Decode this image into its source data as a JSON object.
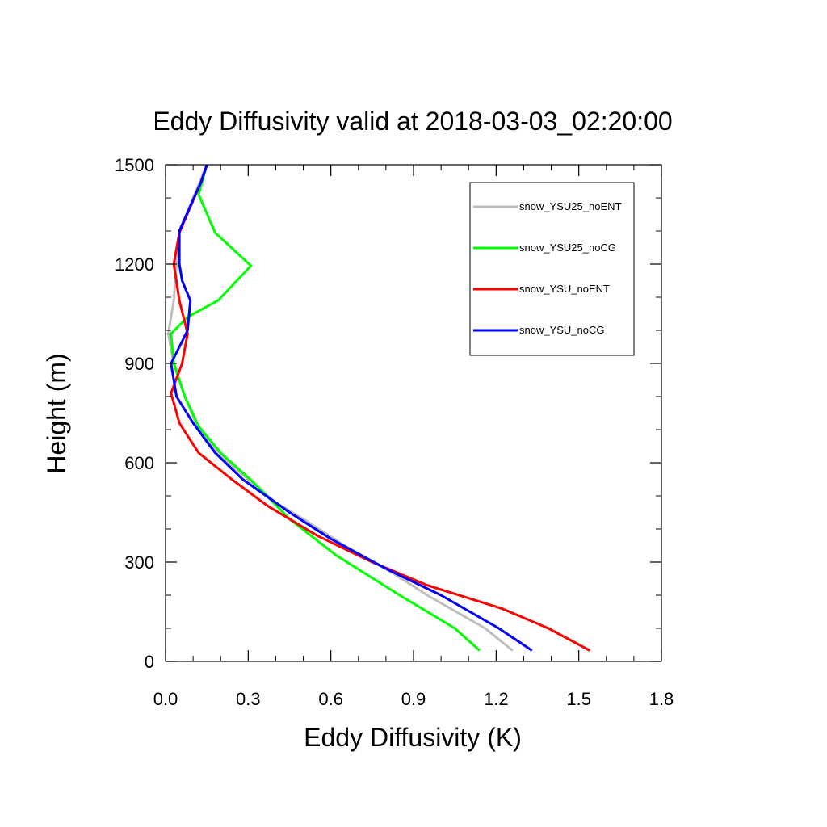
{
  "chart_data": {
    "type": "line",
    "title": "Eddy Diffusivity valid at 2018-03-03_02:20:00",
    "xlabel": "Eddy Diffusivity (K)",
    "ylabel": "Height (m)",
    "xlim": [
      0,
      1.8
    ],
    "ylim": [
      0,
      1500
    ],
    "xticks": [
      "0.0",
      "0.3",
      "0.6",
      "0.9",
      "1.2",
      "1.5",
      "1.8"
    ],
    "yticks": [
      "0",
      "300",
      "600",
      "900",
      "1200",
      "1500"
    ],
    "legend_position": "top-right",
    "grid": false,
    "series": [
      {
        "name": "snow_YSU25_noENT",
        "color": "#bebebe",
        "points": [
          [
            1.26,
            33
          ],
          [
            1.16,
            100
          ],
          [
            0.95,
            200
          ],
          [
            0.8,
            280
          ],
          [
            0.65,
            350
          ],
          [
            0.5,
            430
          ],
          [
            0.4,
            480
          ],
          [
            0.3,
            550
          ],
          [
            0.2,
            620
          ],
          [
            0.12,
            700
          ],
          [
            0.07,
            800
          ],
          [
            0.03,
            900
          ],
          [
            0.01,
            990
          ],
          [
            0.03,
            1090
          ],
          [
            0.04,
            1200
          ],
          [
            0.05,
            1300
          ],
          [
            0.1,
            1400
          ],
          [
            0.15,
            1500
          ]
        ]
      },
      {
        "name": "snow_YSU25_noCG",
        "color": "#00ff00",
        "points": [
          [
            1.14,
            33
          ],
          [
            1.05,
            100
          ],
          [
            0.85,
            200
          ],
          [
            0.62,
            320
          ],
          [
            0.45,
            430
          ],
          [
            0.32,
            540
          ],
          [
            0.2,
            630
          ],
          [
            0.12,
            710
          ],
          [
            0.07,
            800
          ],
          [
            0.03,
            900
          ],
          [
            0.02,
            990
          ],
          [
            0.08,
            1040
          ],
          [
            0.19,
            1090
          ],
          [
            0.31,
            1195
          ],
          [
            0.18,
            1295
          ],
          [
            0.12,
            1410
          ],
          [
            0.15,
            1500
          ]
        ]
      },
      {
        "name": "snow_YSU_noENT",
        "color": "#ff0000",
        "points": [
          [
            1.54,
            33
          ],
          [
            1.39,
            100
          ],
          [
            1.22,
            160
          ],
          [
            0.95,
            230
          ],
          [
            0.75,
            300
          ],
          [
            0.55,
            380
          ],
          [
            0.45,
            430
          ],
          [
            0.37,
            470
          ],
          [
            0.24,
            550
          ],
          [
            0.12,
            630
          ],
          [
            0.05,
            720
          ],
          [
            0.02,
            810
          ],
          [
            0.06,
            900
          ],
          [
            0.08,
            990
          ],
          [
            0.05,
            1090
          ],
          [
            0.03,
            1200
          ],
          [
            0.05,
            1295
          ],
          [
            0.13,
            1450
          ],
          [
            0.15,
            1500
          ]
        ]
      },
      {
        "name": "snow_YSU_noCG",
        "color": "#0000ff",
        "points": [
          [
            1.33,
            33
          ],
          [
            1.21,
            100
          ],
          [
            1.0,
            200
          ],
          [
            0.8,
            280
          ],
          [
            0.6,
            370
          ],
          [
            0.45,
            450
          ],
          [
            0.28,
            550
          ],
          [
            0.18,
            630
          ],
          [
            0.1,
            720
          ],
          [
            0.04,
            800
          ],
          [
            0.02,
            900
          ],
          [
            0.05,
            950
          ],
          [
            0.08,
            1000
          ],
          [
            0.09,
            1090
          ],
          [
            0.06,
            1150
          ],
          [
            0.05,
            1200
          ],
          [
            0.05,
            1300
          ],
          [
            0.13,
            1450
          ],
          [
            0.15,
            1500
          ]
        ]
      }
    ]
  }
}
